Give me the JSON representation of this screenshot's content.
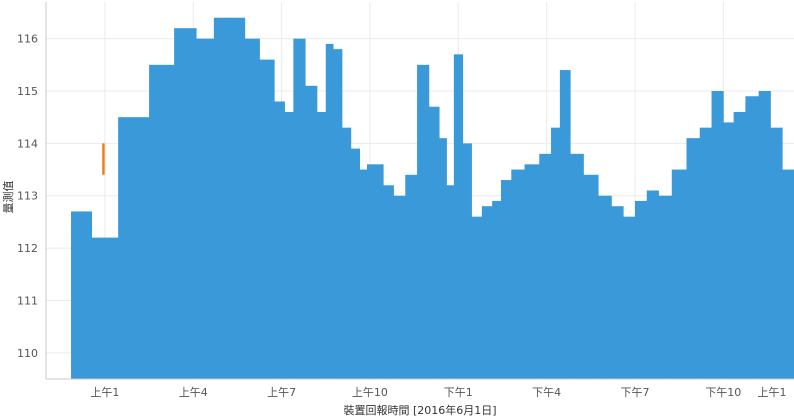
{
  "chart_data": {
    "type": "bar",
    "title": "",
    "xlabel": "裝置回報時間 [2016年6月1日]",
    "ylabel": "量測值",
    "ylim": [
      109.5,
      116.7
    ],
    "yticks": [
      110,
      111,
      112,
      113,
      114,
      115,
      116
    ],
    "x_range_hours": [
      23.0,
      48.4
    ],
    "xticks": [
      {
        "label": "上午1",
        "hour": 25
      },
      {
        "label": "上午4",
        "hour": 28
      },
      {
        "label": "上午7",
        "hour": 31
      },
      {
        "label": "上午10",
        "hour": 34
      },
      {
        "label": "下午1",
        "hour": 37
      },
      {
        "label": "下午4",
        "hour": 40
      },
      {
        "label": "下午7",
        "hour": 43
      },
      {
        "label": "下午10",
        "hour": 46
      },
      {
        "label": "上午1",
        "hour": 49
      }
    ],
    "grid": true,
    "bar_color": "#3a99d9",
    "highlight_color": "#f07c12",
    "series": [
      {
        "hours": [
          24.2,
          24.9,
          26.0,
          27.0,
          27.7,
          28.5,
          28.9,
          29.5,
          30.0,
          30.5,
          31.0,
          31.2,
          31.6,
          32.0,
          32.4,
          32.6,
          32.9,
          33.2,
          33.5,
          33.8,
          34.0,
          34.3,
          34.6,
          35.0,
          35.4,
          35.8,
          36.2,
          36.5,
          36.7,
          37.0,
          37.3,
          37.6,
          38.0,
          38.3,
          38.6,
          39.0,
          39.5,
          40.0,
          40.3,
          40.6,
          41.0,
          41.5,
          42.0,
          42.4,
          42.8,
          43.2,
          43.6,
          44.0,
          44.5,
          45.0,
          45.4,
          45.8,
          46.2,
          46.5,
          47.0,
          47.4,
          47.8,
          48.2
        ],
        "values": [
          112.7,
          112.2,
          114.5,
          115.5,
          116.2,
          116.0,
          116.4,
          116.4,
          116.0,
          115.6,
          114.8,
          114.6,
          116.0,
          115.1,
          114.6,
          115.9,
          115.8,
          114.3,
          113.9,
          113.5,
          113.6,
          113.6,
          113.2,
          113.0,
          113.4,
          115.5,
          114.7,
          114.1,
          113.2,
          115.7,
          114.0,
          112.6,
          112.8,
          112.9,
          113.3,
          113.5,
          113.6,
          113.8,
          114.3,
          115.4,
          113.8,
          113.4,
          113.0,
          112.8,
          112.6,
          112.9,
          113.1,
          113.0,
          113.5,
          114.1,
          114.3,
          115.0,
          114.4,
          114.6,
          114.9,
          115.0,
          114.3,
          113.5
        ]
      }
    ],
    "highlight": {
      "hour": 24.95,
      "value": 114.0
    }
  }
}
